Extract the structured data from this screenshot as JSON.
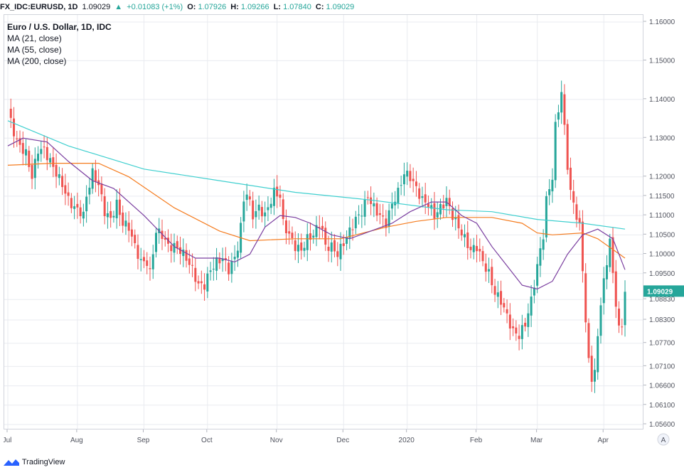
{
  "header": {
    "symbol": "FX_IDC:EURUSD, 1D",
    "last": "1.09029",
    "change": "+0.01083 (+1%)",
    "o_label": "O:",
    "o_value": "1.07926",
    "h_label": "H:",
    "h_value": "1.09266",
    "l_label": "L:",
    "l_value": "1.07840",
    "c_label": "C:",
    "c_value": "1.09029"
  },
  "legend": {
    "title": "Euro / U.S. Dollar, 1D, IDC",
    "ma21": "MA (21, close)",
    "ma55": "MA (55, close)",
    "ma200": "MA (200, close)"
  },
  "footer": {
    "brand": "TradingView"
  },
  "axis_corner": "A",
  "colors": {
    "up": "#26a69a",
    "down": "#ef5350",
    "ma21": "#7b3fa0",
    "ma55": "#f57c1f",
    "ma200": "#3fcfcf",
    "grid": "#e9ebf0",
    "axis_text": "#50535e",
    "price_tag": "#26a69a"
  },
  "chart_data": {
    "type": "candlestick",
    "title": "Euro / U.S. Dollar, 1D, IDC",
    "ylim": [
      1.056,
      1.16
    ],
    "y_ticks": [
      "1.16000",
      "1.15000",
      "1.14000",
      "1.13000",
      "1.12000",
      "1.11500",
      "1.11000",
      "1.10500",
      "1.10000",
      "1.09500",
      "1.08830",
      "1.08300",
      "1.07700",
      "1.07100",
      "1.06600",
      "1.06100",
      "1.05600"
    ],
    "x_ticks": [
      {
        "label": "Jul",
        "index": 0
      },
      {
        "label": "Aug",
        "index": 23
      },
      {
        "label": "Sep",
        "index": 45
      },
      {
        "label": "Oct",
        "index": 66
      },
      {
        "label": "Nov",
        "index": 89
      },
      {
        "label": "Dec",
        "index": 111
      },
      {
        "label": "2020",
        "index": 132
      },
      {
        "label": "Feb",
        "index": 155
      },
      {
        "label": "Mar",
        "index": 175
      },
      {
        "label": "Apr",
        "index": 197
      }
    ],
    "last_price": "1.09029",
    "anchors": [
      [
        0,
        1.137
      ],
      [
        3,
        1.129
      ],
      [
        6,
        1.126
      ],
      [
        8,
        1.12
      ],
      [
        10,
        1.127
      ],
      [
        12,
        1.127
      ],
      [
        14,
        1.124
      ],
      [
        16,
        1.121
      ],
      [
        18,
        1.118
      ],
      [
        20,
        1.114
      ],
      [
        22,
        1.112
      ],
      [
        24,
        1.111
      ],
      [
        25,
        1.11
      ],
      [
        26,
        1.115
      ],
      [
        28,
        1.121
      ],
      [
        30,
        1.118
      ],
      [
        32,
        1.111
      ],
      [
        34,
        1.109
      ],
      [
        36,
        1.113
      ],
      [
        38,
        1.108
      ],
      [
        40,
        1.107
      ],
      [
        42,
        1.102
      ],
      [
        44,
        1.098
      ],
      [
        46,
        1.098
      ],
      [
        47,
        1.095
      ],
      [
        49,
        1.106
      ],
      [
        51,
        1.105
      ],
      [
        53,
        1.102
      ],
      [
        55,
        1.102
      ],
      [
        57,
        1.101
      ],
      [
        59,
        1.099
      ],
      [
        61,
        1.096
      ],
      [
        63,
        1.092
      ],
      [
        65,
        1.092
      ],
      [
        67,
        1.096
      ],
      [
        69,
        1.098
      ],
      [
        71,
        1.099
      ],
      [
        73,
        1.096
      ],
      [
        75,
        1.099
      ],
      [
        76,
        1.102
      ],
      [
        77,
        1.107
      ],
      [
        78,
        1.114
      ],
      [
        79,
        1.116
      ],
      [
        81,
        1.11
      ],
      [
        83,
        1.112
      ],
      [
        85,
        1.11
      ],
      [
        87,
        1.114
      ],
      [
        88,
        1.116
      ],
      [
        90,
        1.115
      ],
      [
        91,
        1.108
      ],
      [
        93,
        1.105
      ],
      [
        95,
        1.102
      ],
      [
        97,
        1.101
      ],
      [
        99,
        1.104
      ],
      [
        101,
        1.105
      ],
      [
        103,
        1.108
      ],
      [
        104,
        1.106
      ],
      [
        105,
        1.102
      ],
      [
        107,
        1.102
      ],
      [
        109,
        1.1
      ],
      [
        111,
        1.103
      ],
      [
        113,
        1.106
      ],
      [
        115,
        1.109
      ],
      [
        117,
        1.111
      ],
      [
        119,
        1.115
      ],
      [
        121,
        1.112
      ],
      [
        123,
        1.11
      ],
      [
        125,
        1.108
      ],
      [
        127,
        1.113
      ],
      [
        129,
        1.116
      ],
      [
        131,
        1.121
      ],
      [
        133,
        1.12
      ],
      [
        135,
        1.117
      ],
      [
        137,
        1.114
      ],
      [
        139,
        1.113
      ],
      [
        141,
        1.11
      ],
      [
        143,
        1.112
      ],
      [
        145,
        1.114
      ],
      [
        147,
        1.11
      ],
      [
        149,
        1.107
      ],
      [
        151,
        1.104
      ],
      [
        153,
        1.101
      ],
      [
        155,
        1.102
      ],
      [
        157,
        1.098
      ],
      [
        159,
        1.095
      ],
      [
        161,
        1.09
      ],
      [
        163,
        1.088
      ],
      [
        165,
        1.084
      ],
      [
        167,
        1.08
      ],
      [
        169,
        1.079
      ],
      [
        171,
        1.082
      ],
      [
        173,
        1.088
      ],
      [
        175,
        1.097
      ],
      [
        177,
        1.105
      ],
      [
        178,
        1.114
      ],
      [
        180,
        1.12
      ],
      [
        181,
        1.133
      ],
      [
        183,
        1.142
      ],
      [
        185,
        1.123
      ],
      [
        186,
        1.116
      ],
      [
        188,
        1.11
      ],
      [
        189,
        1.107
      ],
      [
        190,
        1.096
      ],
      [
        191,
        1.083
      ],
      [
        192,
        1.072
      ],
      [
        193,
        1.068
      ],
      [
        194,
        1.07
      ],
      [
        195,
        1.078
      ],
      [
        196,
        1.088
      ],
      [
        197,
        1.093
      ],
      [
        198,
        1.097
      ],
      [
        199,
        1.105
      ],
      [
        200,
        1.094
      ],
      [
        201,
        1.087
      ],
      [
        202,
        1.082
      ],
      [
        203,
        1.08
      ],
      [
        204,
        1.0903
      ]
    ],
    "ma200_points": [
      [
        0,
        1.1345
      ],
      [
        20,
        1.128
      ],
      [
        45,
        1.122
      ],
      [
        70,
        1.119
      ],
      [
        95,
        1.116
      ],
      [
        120,
        1.114
      ],
      [
        145,
        1.1115
      ],
      [
        160,
        1.111
      ],
      [
        175,
        1.109
      ],
      [
        190,
        1.108
      ],
      [
        204,
        1.1065
      ]
    ],
    "ma55_points": [
      [
        0,
        1.123
      ],
      [
        15,
        1.1235
      ],
      [
        30,
        1.1235
      ],
      [
        40,
        1.12
      ],
      [
        55,
        1.112
      ],
      [
        70,
        1.106
      ],
      [
        80,
        1.1035
      ],
      [
        95,
        1.104
      ],
      [
        110,
        1.104
      ],
      [
        125,
        1.107
      ],
      [
        135,
        1.1085
      ],
      [
        145,
        1.1095
      ],
      [
        160,
        1.1095
      ],
      [
        170,
        1.108
      ],
      [
        175,
        1.1055
      ],
      [
        180,
        1.105
      ],
      [
        190,
        1.1055
      ],
      [
        195,
        1.104
      ],
      [
        204,
        1.099
      ]
    ],
    "ma21_points": [
      [
        0,
        1.128
      ],
      [
        5,
        1.13
      ],
      [
        13,
        1.129
      ],
      [
        20,
        1.124
      ],
      [
        28,
        1.119
      ],
      [
        35,
        1.117
      ],
      [
        45,
        1.11
      ],
      [
        55,
        1.102
      ],
      [
        62,
        1.099
      ],
      [
        70,
        1.099
      ],
      [
        75,
        1.098
      ],
      [
        80,
        1.1
      ],
      [
        85,
        1.107
      ],
      [
        90,
        1.11
      ],
      [
        95,
        1.1095
      ],
      [
        100,
        1.108
      ],
      [
        107,
        1.105
      ],
      [
        113,
        1.104
      ],
      [
        120,
        1.106
      ],
      [
        127,
        1.108
      ],
      [
        133,
        1.111
      ],
      [
        140,
        1.1135
      ],
      [
        145,
        1.1135
      ],
      [
        150,
        1.11
      ],
      [
        155,
        1.108
      ],
      [
        160,
        1.102
      ],
      [
        165,
        1.097
      ],
      [
        170,
        1.092
      ],
      [
        175,
        1.091
      ],
      [
        180,
        1.093
      ],
      [
        185,
        1.1
      ],
      [
        190,
        1.105
      ],
      [
        195,
        1.1065
      ],
      [
        200,
        1.104
      ],
      [
        204,
        1.096
      ]
    ]
  }
}
